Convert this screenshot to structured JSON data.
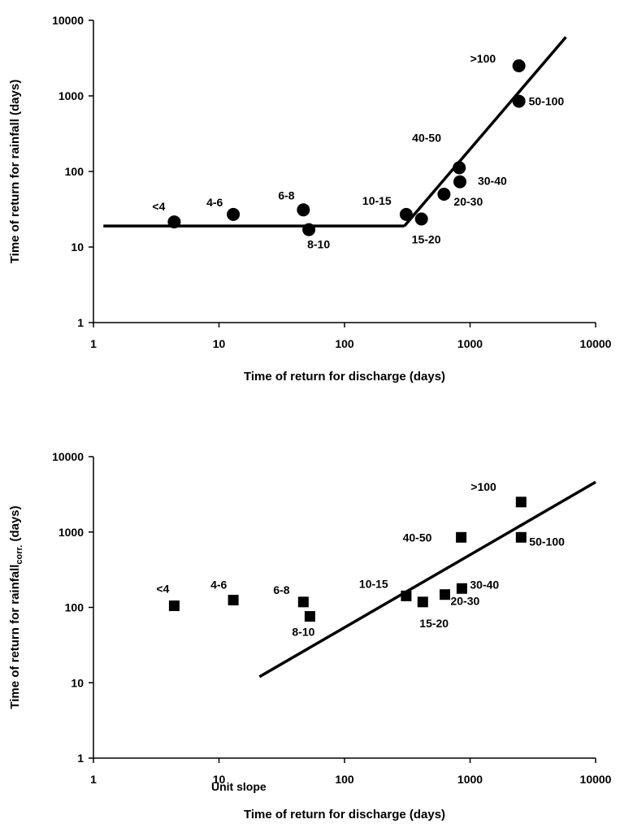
{
  "chart_data": [
    {
      "type": "scatter",
      "marker": "circle",
      "xlabel": "Time of return for discharge (days)",
      "ylabel": "Time of return for rainfall (days)",
      "xscale": "log",
      "yscale": "log",
      "xlim": [
        1,
        10000
      ],
      "ylim": [
        1,
        10000
      ],
      "xticks": [
        "1",
        "10",
        "100",
        "1000",
        "10000"
      ],
      "yticks": [
        "1",
        "10",
        "100",
        "1000",
        "10000"
      ],
      "grid": false,
      "points": [
        {
          "label": "<4",
          "x": 4.4,
          "y": 21.5
        },
        {
          "label": "4-6",
          "x": 13,
          "y": 27
        },
        {
          "label": "6-8",
          "x": 47,
          "y": 31
        },
        {
          "label": "8-10",
          "x": 52,
          "y": 17
        },
        {
          "label": "10-15",
          "x": 310,
          "y": 27
        },
        {
          "label": "15-20",
          "x": 410,
          "y": 23.5
        },
        {
          "label": "20-30",
          "x": 620,
          "y": 50
        },
        {
          "label": "30-40",
          "x": 830,
          "y": 73
        },
        {
          "label": "40-50",
          "x": 820,
          "y": 112
        },
        {
          "label": "50-100",
          "x": 2450,
          "y": 850
        },
        {
          "label": ">100",
          "x": 2450,
          "y": 2500
        }
      ],
      "lines": [
        {
          "points": [
            [
              1.2,
              19
            ],
            [
              300,
              19
            ]
          ]
        },
        {
          "points": [
            [
              300,
              19
            ],
            [
              5800,
              6000
            ]
          ]
        }
      ]
    },
    {
      "type": "scatter",
      "marker": "square",
      "xlabel": "Time of return for discharge (days)",
      "ylabel_main": "Time of return for rainfall",
      "ylabel_sub": "corr.",
      "ylabel_tail": " (days)",
      "xscale": "log",
      "yscale": "log",
      "xlim": [
        1,
        10000
      ],
      "ylim": [
        1,
        10000
      ],
      "xticks": [
        "1",
        "10",
        "100",
        "1000",
        "10000"
      ],
      "yticks": [
        "1",
        "10",
        "100",
        "1000",
        "10000"
      ],
      "grid": false,
      "points": [
        {
          "label": "<4",
          "x": 4.4,
          "y": 105
        },
        {
          "label": "4-6",
          "x": 13,
          "y": 125
        },
        {
          "label": "6-8",
          "x": 47,
          "y": 118
        },
        {
          "label": "8-10",
          "x": 53,
          "y": 76
        },
        {
          "label": "10-15",
          "x": 310,
          "y": 142
        },
        {
          "label": "15-20",
          "x": 420,
          "y": 118
        },
        {
          "label": "20-30",
          "x": 630,
          "y": 148
        },
        {
          "label": "30-40",
          "x": 860,
          "y": 178
        },
        {
          "label": "40-50",
          "x": 850,
          "y": 850
        },
        {
          "label": "50-100",
          "x": 2550,
          "y": 850
        },
        {
          "label": ">100",
          "x": 2550,
          "y": 2500
        }
      ],
      "lines": [
        {
          "points": [
            [
              21,
              12
            ],
            [
              10000,
              4600
            ]
          ]
        }
      ],
      "annotation": "Unit slope"
    }
  ]
}
